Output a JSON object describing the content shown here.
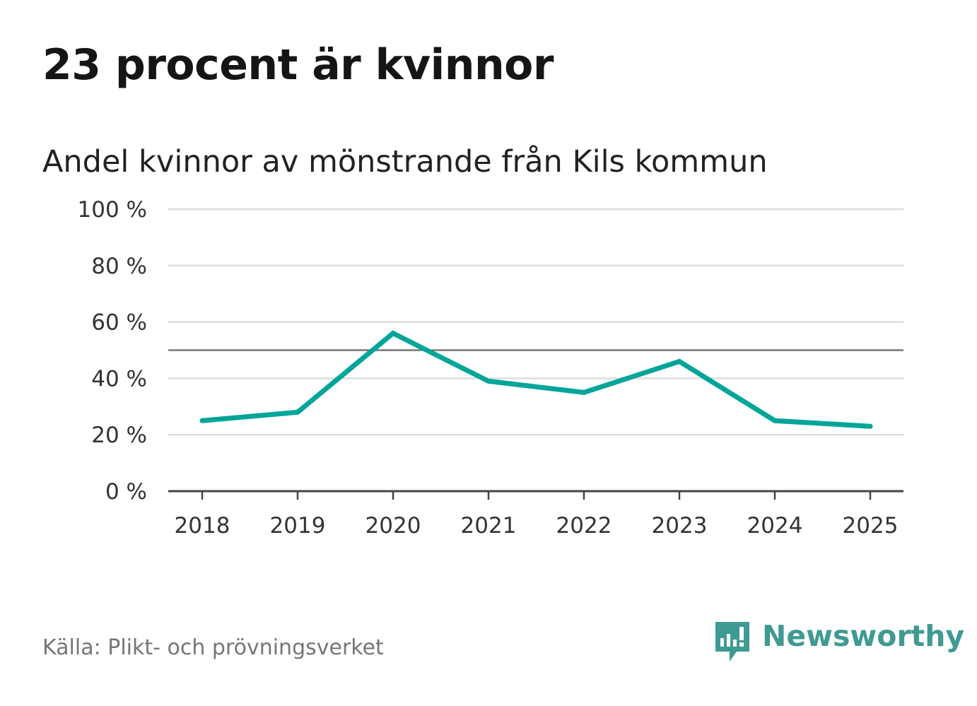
{
  "header": {
    "title": "23 procent är kvinnor",
    "subtitle": "Andel kvinnor av mönstrande från Kils kommun"
  },
  "footer": {
    "source": "Källa: Plikt- och prövningsverket",
    "brand": "Newsworthy",
    "brand_icon": "newsworthy-logo-icon"
  },
  "colors": {
    "series": "#00a59a",
    "grid": "#dddddd",
    "reference_line": "#777777",
    "axis": "#444444",
    "brand": "#3f9a93"
  },
  "chart_data": {
    "type": "line",
    "title": "23 procent är kvinnor",
    "subtitle": "Andel kvinnor av mönstrande från Kils kommun",
    "xlabel": "",
    "ylabel": "",
    "categories": [
      "2018",
      "2019",
      "2020",
      "2021",
      "2022",
      "2023",
      "2024",
      "2025"
    ],
    "series": [
      {
        "name": "Andel kvinnor",
        "values": [
          25,
          28,
          56,
          39,
          35,
          46,
          25,
          23
        ]
      }
    ],
    "ylim": [
      0,
      100
    ],
    "yticks": [
      0,
      20,
      40,
      60,
      80,
      100
    ],
    "ytick_labels": [
      "0 %",
      "20 %",
      "40 %",
      "60 %",
      "80 %",
      "100 %"
    ],
    "reference_line": 50,
    "grid": true,
    "legend": "none"
  }
}
